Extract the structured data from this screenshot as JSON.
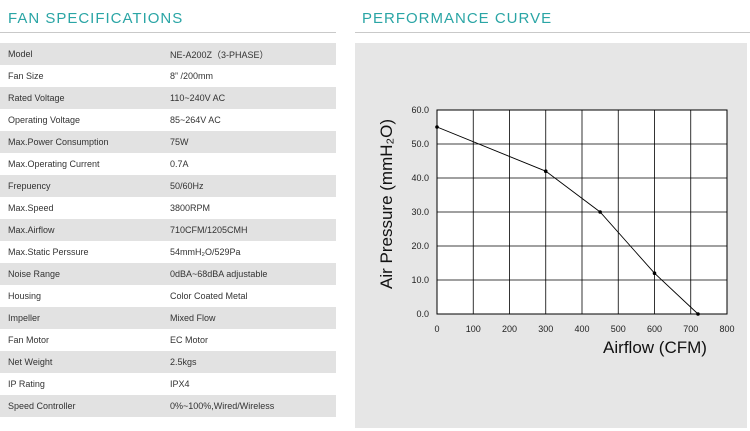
{
  "spec_title": "FAN SPECIFICATIONS",
  "curve_title": "PERFORMANCE CURVE",
  "specs": [
    {
      "label": "Model",
      "value": "NE-A200Z（3-PHASE）"
    },
    {
      "label": "Fan Size",
      "value": "8” /200mm"
    },
    {
      "label": "Rated Voltage",
      "value": "110~240V AC"
    },
    {
      "label": "Operating Voltage",
      "value": "85~264V AC"
    },
    {
      "label": "Max.Power Consumption",
      "value": "75W"
    },
    {
      "label": "Max.Operating Current",
      "value": "0.7A"
    },
    {
      "label": "Frepuency",
      "value": "50/60Hz"
    },
    {
      "label": "Max.Speed",
      "value": "3800RPM"
    },
    {
      "label": "Max.Airflow",
      "value": "710CFM/1205CMH"
    },
    {
      "label": "Max.Static Perssure",
      "value": "54mmH₂O/529Pa"
    },
    {
      "label": "Noise Range",
      "value": "0dBA~68dBA adjustable"
    },
    {
      "label": "Housing",
      "value": "Color Coated Metal"
    },
    {
      "label": "Impeller",
      "value": "Mixed Flow"
    },
    {
      "label": "Fan Motor",
      "value": "EC Motor"
    },
    {
      "label": "Net Weight",
      "value": "2.5kgs"
    },
    {
      "label": "IP Rating",
      "value": "IPX4"
    },
    {
      "label": "Speed Controller",
      "value": "0%~100%,Wired/Wireless"
    }
  ],
  "chart_data": {
    "type": "line",
    "xlabel": "Airflow (CFM)",
    "ylabel": "Air Pressure (mmH₂O)",
    "xlim": [
      0,
      800
    ],
    "ylim": [
      0,
      60
    ],
    "xticks": [
      "0",
      "100",
      "200",
      "300",
      "400",
      "500",
      "600",
      "700",
      "800"
    ],
    "yticks": [
      "0.0",
      "10.0",
      "20.0",
      "30.0",
      "40.0",
      "50.0",
      "60.0"
    ],
    "grid": true,
    "series": [
      {
        "x": [
          0,
          300,
          450,
          600,
          720
        ],
        "y": [
          55,
          42,
          30,
          12,
          0
        ]
      }
    ]
  }
}
